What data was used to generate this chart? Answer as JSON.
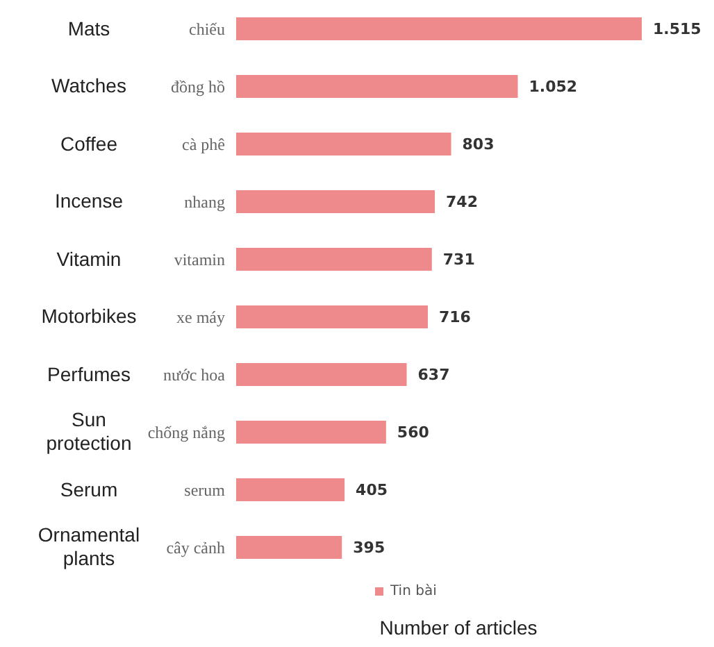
{
  "chart_data": {
    "type": "bar",
    "orientation": "horizontal",
    "xlabel": "Number of articles",
    "categories": [
      "chiếu",
      "đồng hồ",
      "cà phê",
      "nhang",
      "vitamin",
      "xe máy",
      "nước hoa",
      "chống nắng",
      "serum",
      "cây cảnh"
    ],
    "series": [
      {
        "name": "Tin bài",
        "color": "#ef8a8c",
        "values": [
          1515,
          1052,
          803,
          742,
          731,
          716,
          637,
          560,
          405,
          395
        ],
        "value_labels": [
          "1.515",
          "1.052",
          "803",
          "742",
          "731",
          "716",
          "637",
          "560",
          "405",
          "395"
        ]
      }
    ],
    "annotations": [
      "Mats",
      "Watches",
      "Coffee",
      "Incense",
      "Vitamin",
      "Motorbikes",
      "Perfumes",
      "Sun protection",
      "Serum",
      "Ornamental plants"
    ],
    "legend": "bottom",
    "grid": false
  }
}
